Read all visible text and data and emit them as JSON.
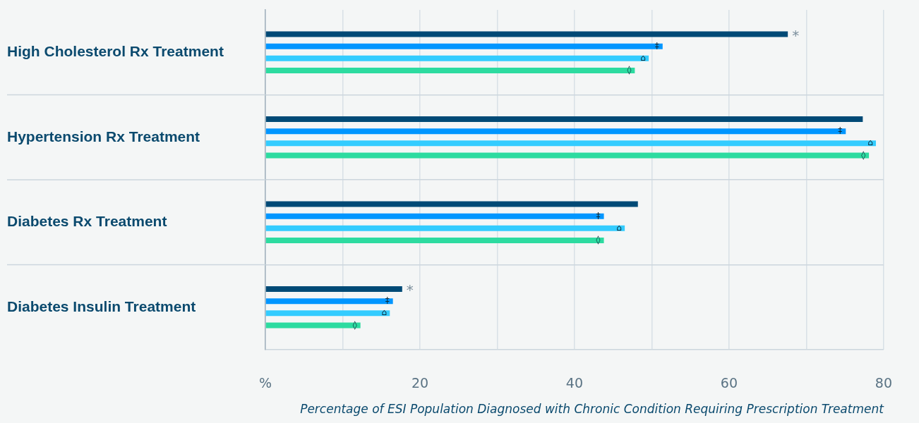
{
  "chart_data": {
    "type": "bar",
    "orientation": "horizontal",
    "xlabel": "Percentage of ESI Population Diagnosed with Chronic Condition Requiring Prescription Treatment",
    "categories": [
      "High Cholesterol Rx Treatment",
      "Hypertension Rx Treatment",
      "Diabetes Rx Treatment",
      "Diabetes Insulin Treatment"
    ],
    "series": [
      {
        "color": "#004a76",
        "values": [
          67.6,
          77.3,
          48.2,
          17.7
        ],
        "value_labels": [
          "*",
          null,
          null,
          "*"
        ]
      },
      {
        "color": "#0096ff",
        "values": [
          51.4,
          75.1,
          43.8,
          16.5
        ],
        "value_labels": [
          "‡",
          "‡",
          "‡",
          "‡"
        ]
      },
      {
        "color": "#33ccff",
        "values": [
          49.6,
          79.0,
          46.5,
          16.1
        ],
        "value_labels": [
          "⌂",
          "⌂",
          "⌂",
          "⌂"
        ]
      },
      {
        "color": "#2ddba0",
        "values": [
          47.8,
          78.1,
          43.8,
          12.3
        ],
        "value_labels": [
          "◊",
          "◊",
          "◊",
          "◊"
        ]
      }
    ],
    "xlim": [
      0,
      80
    ],
    "xticks": [
      {
        "value": 0,
        "label": "%"
      },
      {
        "value": 10,
        "label": null
      },
      20,
      {
        "value": 30,
        "label": null
      },
      40,
      {
        "value": 50,
        "label": null
      },
      60,
      {
        "value": 70,
        "label": null
      },
      80
    ],
    "grid": true,
    "legend": false
  }
}
